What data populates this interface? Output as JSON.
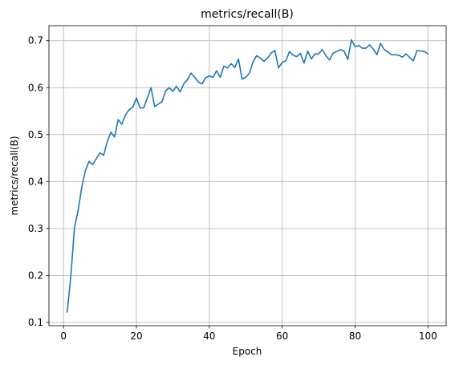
{
  "chart_data": {
    "type": "line",
    "title": "metrics/recall(B)",
    "xlabel": "Epoch",
    "ylabel": "metrics/recall(B)",
    "xlim": [
      -4,
      105
    ],
    "ylim": [
      0.093,
      0.732
    ],
    "xticks": [
      0,
      20,
      40,
      60,
      80,
      100
    ],
    "yticks": [
      0.1,
      0.2,
      0.3,
      0.4,
      0.5,
      0.6,
      0.7
    ],
    "grid": true,
    "legend": "none",
    "series": [
      {
        "color": "#1f77b4",
        "x": [
          1,
          2,
          3,
          4,
          5,
          6,
          7,
          8,
          9,
          10,
          11,
          12,
          13,
          14,
          15,
          16,
          17,
          18,
          19,
          20,
          21,
          22,
          23,
          24,
          25,
          26,
          27,
          28,
          29,
          30,
          31,
          32,
          33,
          34,
          35,
          36,
          37,
          38,
          39,
          40,
          41,
          42,
          43,
          44,
          45,
          46,
          47,
          48,
          49,
          50,
          51,
          52,
          53,
          54,
          55,
          56,
          57,
          58,
          59,
          60,
          61,
          62,
          63,
          64,
          65,
          66,
          67,
          68,
          69,
          70,
          71,
          72,
          73,
          74,
          75,
          76,
          77,
          78,
          79,
          80,
          81,
          82,
          83,
          84,
          85,
          86,
          87,
          88,
          89,
          90,
          91,
          92,
          93,
          94,
          95,
          96,
          97,
          98,
          99,
          100
        ],
        "y": [
          0.122,
          0.198,
          0.302,
          0.338,
          0.388,
          0.423,
          0.443,
          0.436,
          0.449,
          0.461,
          0.456,
          0.485,
          0.505,
          0.495,
          0.532,
          0.522,
          0.542,
          0.553,
          0.558,
          0.578,
          0.557,
          0.557,
          0.578,
          0.6,
          0.56,
          0.565,
          0.57,
          0.593,
          0.6,
          0.592,
          0.603,
          0.591,
          0.608,
          0.617,
          0.631,
          0.622,
          0.612,
          0.608,
          0.621,
          0.625,
          0.622,
          0.636,
          0.622,
          0.646,
          0.642,
          0.651,
          0.643,
          0.661,
          0.618,
          0.622,
          0.631,
          0.655,
          0.668,
          0.663,
          0.656,
          0.663,
          0.674,
          0.679,
          0.642,
          0.654,
          0.657,
          0.677,
          0.669,
          0.666,
          0.673,
          0.652,
          0.678,
          0.661,
          0.672,
          0.672,
          0.681,
          0.668,
          0.659,
          0.674,
          0.677,
          0.681,
          0.678,
          0.66,
          0.702,
          0.687,
          0.69,
          0.684,
          0.684,
          0.691,
          0.682,
          0.67,
          0.694,
          0.681,
          0.676,
          0.67,
          0.67,
          0.669,
          0.665,
          0.672,
          0.664,
          0.657,
          0.679,
          0.678,
          0.677,
          0.672
        ]
      }
    ]
  }
}
